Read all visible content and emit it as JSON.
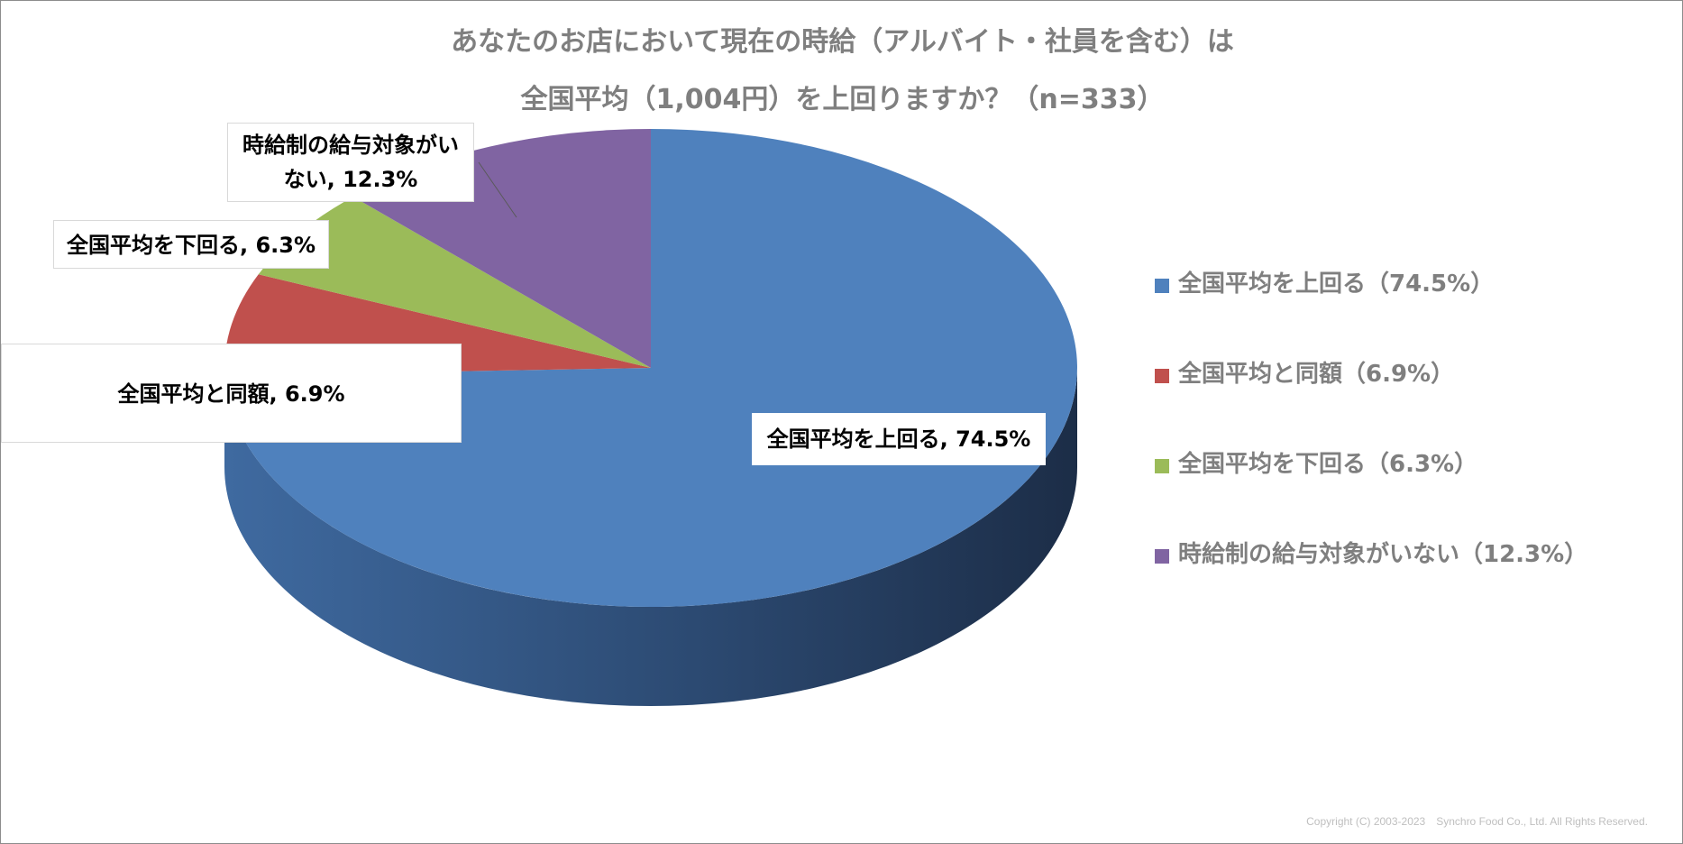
{
  "chart_data": {
    "type": "pie",
    "title_lines": [
      "あなたのお店において現在の時給（アルバイト・社員を含む）は",
      "全国平均（1,004円）を上回りますか？（n=333）"
    ],
    "slices": [
      {
        "label": "全国平均を上回る",
        "value": 74.5,
        "color": "#4f81bd",
        "data_label": "全国平均を上回る, 74.5%",
        "legend": "全国平均を上回る（74.5%）"
      },
      {
        "label": "全国平均と同額",
        "value": 6.9,
        "color": "#c0504d",
        "data_label": "全国平均と同額, 6.9%",
        "legend": "全国平均と同額（6.9%）"
      },
      {
        "label": "全国平均を下回る",
        "value": 6.3,
        "color": "#9bbb59",
        "data_label": "全国平均を下回る, 6.3%",
        "legend": "全国平均を下回る（6.3%）"
      },
      {
        "label": "時給制の給与対象がいない",
        "value": 12.3,
        "color": "#8064a2",
        "data_label_lines": [
          "時給制の給与対象がい",
          "ない, 12.3%"
        ],
        "legend": "時給制の給与対象がいない（12.3%）"
      }
    ],
    "legend_position": "right",
    "style": "3d-pie"
  },
  "copyright": "Copyright (C) 2003-2023　Synchro Food Co., Ltd. All Rights Reserved."
}
